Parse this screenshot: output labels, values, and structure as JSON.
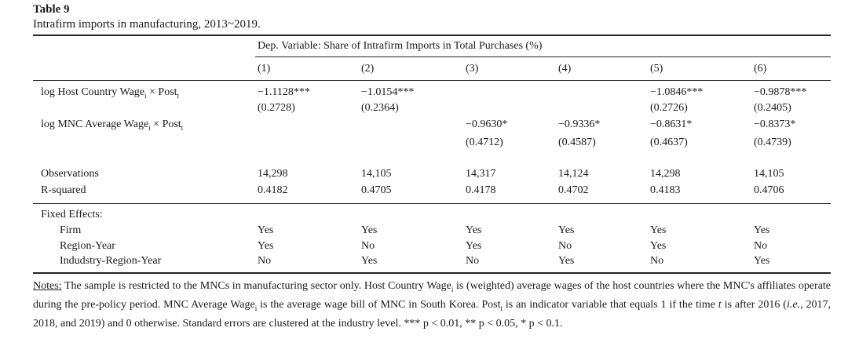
{
  "table": {
    "label": "Table 9",
    "caption": "Intrafirm imports in manufacturing, 2013~2019.",
    "dep_variable": "Dep. Variable: Share of Intrafirm Imports in Total Purchases (%)",
    "columns": [
      "(1)",
      "(2)",
      "(3)",
      "(4)",
      "(5)",
      "(6)"
    ],
    "rows": {
      "host_wage_label": "log Host Country Wage",
      "host_wage_sub": "i",
      "times": " × Post",
      "post_sub": "t",
      "mnc_wage_label": "log MNC Average Wage",
      "host_wage_coef": [
        "−1.1128***",
        "−1.0154***",
        "",
        "",
        "−1.0846***",
        "−0.9878***"
      ],
      "host_wage_se": [
        "(0.2728)",
        "(0.2364)",
        "",
        "",
        "(0.2726)",
        "(0.2405)"
      ],
      "mnc_wage_coef": [
        "",
        "",
        "−0.9630*",
        "−0.9336*",
        "−0.8631*",
        "−0.8373*"
      ],
      "mnc_wage_se": [
        "",
        "",
        "(0.4712)",
        "(0.4587)",
        "(0.4637)",
        "(0.4739)"
      ],
      "observations_label": "Observations",
      "observations": [
        "14,298",
        "14,105",
        "14,317",
        "14,124",
        "14,298",
        "14,105"
      ],
      "rsquared_label": "R-squared",
      "rsquared": [
        "0.4182",
        "0.4705",
        "0.4178",
        "0.4702",
        "0.4183",
        "0.4706"
      ],
      "fixed_effects_label": "Fixed Effects:",
      "firm_label": "Firm",
      "firm": [
        "Yes",
        "Yes",
        "Yes",
        "Yes",
        "Yes",
        "Yes"
      ],
      "region_year_label": "Region-Year",
      "region_year": [
        "Yes",
        "No",
        "Yes",
        "No",
        "Yes",
        "No"
      ],
      "industry_region_year_label": "Indudstry-Region-Year",
      "industry_region_year": [
        "No",
        "Yes",
        "No",
        "Yes",
        "No",
        "Yes"
      ]
    },
    "notes": {
      "label": "Notes:",
      "line1a": " The sample is restricted to the MNCs in manufacturing sector only. Host Country Wage",
      "line1b": " is (weighted) average wages of the host countries",
      "line2a": "where the MNC's affiliates operate during the pre-policy period. MNC Average Wage",
      "line2b": " is the average wage bill of MNC in South Korea. Post",
      "line3a": "is an indicator variable that equals 1 if the time ",
      "line3b": " is after 2016 (",
      "line3ie": "i.e.",
      "line3c": ", 2017, 2018, and 2019) and 0 otherwise. Standard errors are clustered at",
      "line4": "the industry level. *** p < 0.01, ** p < 0.05, * p < 0.1."
    }
  }
}
